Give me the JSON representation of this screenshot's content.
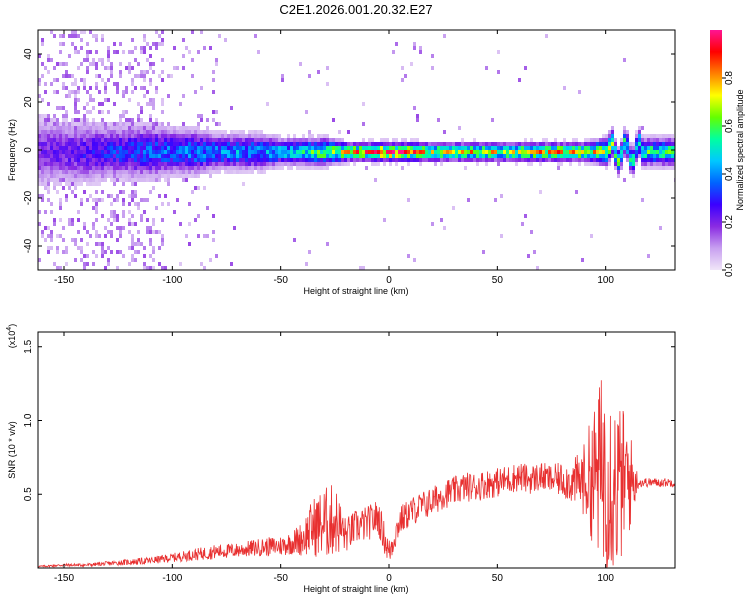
{
  "title": "C2E1.2026.001.20.32.E27",
  "colors": {
    "signal": "#e83030",
    "axis": "#000000"
  },
  "chart_data": [
    {
      "type": "heatmap",
      "name": "spectrogram",
      "xlabel": "Height of straight line (km)",
      "ylabel": "Frequency (Hz)",
      "xlim": [
        -162,
        132
      ],
      "ylim": [
        -50,
        50
      ],
      "xticks": [
        -150,
        -100,
        -50,
        0,
        50,
        100
      ],
      "yticks": [
        40,
        20,
        0,
        -20,
        -40
      ],
      "colorbar": {
        "label": "Normalized spectral amplitude",
        "range": [
          0,
          1
        ],
        "ticks": [
          "0.0",
          "0.2",
          "0.4",
          "0.6",
          "0.8"
        ],
        "tick_values": [
          0.0,
          0.2,
          0.4,
          0.6,
          0.8
        ],
        "colormap": [
          "#f0e6f8",
          "#c8a0f0",
          "#8a2be2",
          "#3b00ff",
          "#0064ff",
          "#00c8ff",
          "#00ffa0",
          "#64ff00",
          "#ffff00",
          "#ff8000",
          "#ff0000",
          "#ff1493"
        ]
      },
      "band": [
        {
          "x": -160,
          "amp": 0.22,
          "width": 8
        },
        {
          "x": -150,
          "amp": 0.25,
          "width": 7
        },
        {
          "x": -140,
          "amp": 0.28,
          "width": 7
        },
        {
          "x": -130,
          "amp": 0.32,
          "width": 6
        },
        {
          "x": -120,
          "amp": 0.35,
          "width": 6
        },
        {
          "x": -110,
          "amp": 0.38,
          "width": 6
        },
        {
          "x": -100,
          "amp": 0.4,
          "width": 5
        },
        {
          "x": -90,
          "amp": 0.42,
          "width": 5
        },
        {
          "x": -80,
          "amp": 0.42,
          "width": 4
        },
        {
          "x": -70,
          "amp": 0.44,
          "width": 4
        },
        {
          "x": -60,
          "amp": 0.45,
          "width": 4
        },
        {
          "x": -50,
          "amp": 0.48,
          "width": 3
        },
        {
          "x": -40,
          "amp": 0.55,
          "width": 3
        },
        {
          "x": -30,
          "amp": 0.65,
          "width": 3
        },
        {
          "x": -20,
          "amp": 0.8,
          "width": 2
        },
        {
          "x": -10,
          "amp": 0.85,
          "width": 2
        },
        {
          "x": 0,
          "amp": 0.95,
          "width": 2
        },
        {
          "x": 10,
          "amp": 0.9,
          "width": 2
        },
        {
          "x": 20,
          "amp": 0.72,
          "width": 2
        },
        {
          "x": 30,
          "amp": 0.75,
          "width": 2
        },
        {
          "x": 40,
          "amp": 0.78,
          "width": 2
        },
        {
          "x": 50,
          "amp": 0.72,
          "width": 2
        },
        {
          "x": 60,
          "amp": 0.75,
          "width": 2
        },
        {
          "x": 70,
          "amp": 0.8,
          "width": 2
        },
        {
          "x": 80,
          "amp": 0.82,
          "width": 2
        },
        {
          "x": 90,
          "amp": 0.78,
          "width": 2
        },
        {
          "x": 100,
          "amp": 0.72,
          "width": 3
        },
        {
          "x": 110,
          "amp": 0.55,
          "width": 3
        },
        {
          "x": 120,
          "amp": 0.6,
          "width": 3
        },
        {
          "x": 130,
          "amp": 0.6,
          "width": 3
        }
      ]
    },
    {
      "type": "line",
      "name": "snr",
      "xlabel": "Height of straight line (km)",
      "ylabel": "SNR (10 * v/v)",
      "scale_label": "(x10",
      "scale_exponent": "4",
      "scale_close": ")",
      "xlim": [
        -162,
        132
      ],
      "ylim": [
        0,
        1.6
      ],
      "xticks": [
        -150,
        -100,
        -50,
        0,
        50,
        100
      ],
      "yticks": [
        0.5,
        1.0,
        1.5
      ],
      "ytick_labels": [
        "0.5",
        "1.0",
        "1.5"
      ],
      "series": [
        {
          "name": "SNR",
          "x": [
            -162,
            -150,
            -140,
            -130,
            -120,
            -110,
            -100,
            -90,
            -80,
            -70,
            -60,
            -50,
            -45,
            -40,
            -35,
            -30,
            -25,
            -20,
            -15,
            -10,
            -5,
            0,
            5,
            10,
            15,
            20,
            25,
            30,
            35,
            40,
            45,
            50,
            55,
            60,
            65,
            70,
            75,
            80,
            85,
            90,
            95,
            100,
            105,
            110,
            115,
            120,
            125,
            132
          ],
          "values": [
            0.01,
            0.02,
            0.02,
            0.03,
            0.04,
            0.05,
            0.07,
            0.09,
            0.11,
            0.12,
            0.14,
            0.15,
            0.17,
            0.2,
            0.28,
            0.3,
            0.33,
            0.22,
            0.28,
            0.3,
            0.35,
            0.1,
            0.32,
            0.38,
            0.42,
            0.45,
            0.5,
            0.52,
            0.55,
            0.55,
            0.57,
            0.58,
            0.6,
            0.62,
            0.6,
            0.62,
            0.6,
            0.6,
            0.58,
            0.6,
            0.62,
            0.7,
            0.55,
            0.6,
            0.58,
            0.58,
            0.58,
            0.58
          ],
          "spike_amplitude": [
            0.005,
            0.01,
            0.01,
            0.015,
            0.02,
            0.025,
            0.03,
            0.04,
            0.05,
            0.05,
            0.06,
            0.07,
            0.08,
            0.12,
            0.2,
            0.25,
            0.25,
            0.12,
            0.12,
            0.12,
            0.12,
            0.1,
            0.1,
            0.1,
            0.1,
            0.1,
            0.1,
            0.1,
            0.1,
            0.1,
            0.1,
            0.1,
            0.1,
            0.1,
            0.1,
            0.1,
            0.1,
            0.12,
            0.15,
            0.25,
            0.5,
            0.75,
            0.6,
            0.45,
            0.04,
            0.03,
            0.03,
            0.03
          ]
        }
      ]
    }
  ]
}
